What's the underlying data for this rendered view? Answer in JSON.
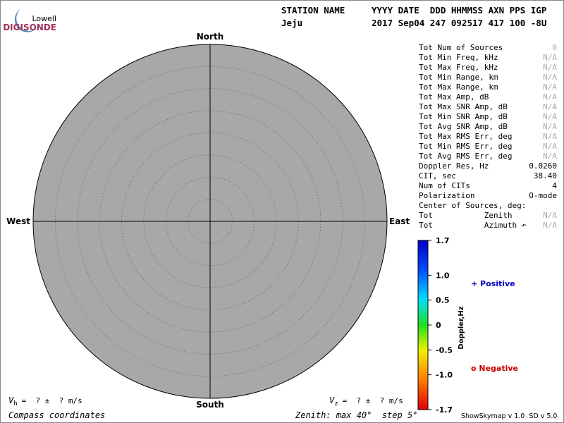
{
  "logo": {
    "top": "Lowell",
    "bottom": "DIGISONDE"
  },
  "header": {
    "station_label": "STATION NAME",
    "fields_label": "YYYY DATE  DDD HHMMSS AXN PPS IGP",
    "station": "Jeju",
    "fields": "2017 Sep04 247 092517 417 100 -8U"
  },
  "compass": {
    "north": "North",
    "south": "South",
    "east": "East",
    "west": "West"
  },
  "stats": [
    {
      "label": "Tot Num of Sources",
      "value": "0"
    },
    {
      "label": "Tot Min Freq, kHz",
      "value": "N/A"
    },
    {
      "label": "Tot Max Freq, kHz",
      "value": "N/A"
    },
    {
      "label": "Tot Min Range, km",
      "value": "N/A"
    },
    {
      "label": "Tot Max Range, km",
      "value": "N/A"
    },
    {
      "label": "Tot Max Amp, dB",
      "value": "N/A"
    },
    {
      "label": "Tot Max SNR Amp, dB",
      "value": "N/A"
    },
    {
      "label": "Tot Min SNR Amp, dB",
      "value": "N/A"
    },
    {
      "label": "Tot Avg SNR Amp, dB",
      "value": "N/A"
    },
    {
      "label": "Tot Max RMS Err, deg",
      "value": "N/A"
    },
    {
      "label": "Tot Min RMS Err, deg",
      "value": "N/A"
    },
    {
      "label": "Tot Avg RMS Err, deg",
      "value": "N/A"
    },
    {
      "label": "Doppler Res, Hz",
      "value": "0.0260"
    },
    {
      "label": "CIT, sec",
      "value": "38.40"
    },
    {
      "label": "Num of CITs",
      "value": "4"
    },
    {
      "label": "Polarization",
      "value": "O-mode"
    },
    {
      "label": "Center of Sources, deg:"
    },
    {
      "label": "Tot           Zenith",
      "value": "N/A"
    },
    {
      "label": "Tot           Azimuth ↶",
      "value": "N/A"
    }
  ],
  "colorbar": {
    "title": "Doppler,Hz",
    "ticks": [
      {
        "value": 1.7,
        "label": "1.7"
      },
      {
        "value": 1.0,
        "label": "1.0"
      },
      {
        "value": 0.5,
        "label": "0.5"
      },
      0,
      {
        "value": -0.5,
        "label": "-0.5"
      },
      {
        "value": -1.0,
        "label": "-1.0"
      },
      {
        "value": -1.7,
        "label": "-1.7"
      }
    ]
  },
  "legend": {
    "positive": "+ Positive",
    "negative": "o Negative"
  },
  "footer": {
    "vh_symbol": "V",
    "vh_sub": "h",
    "vh_text": "=  ? ±  ? m/s",
    "vz_symbol": "V",
    "vz_sub": "z",
    "vz_text": "=  ? ±  ? m/s",
    "coordinates": "Compass coordinates",
    "zenith": "Zenith: max 40°  step 5°",
    "version": "ShowSkymap v 1.0  SD v 5.0"
  }
}
